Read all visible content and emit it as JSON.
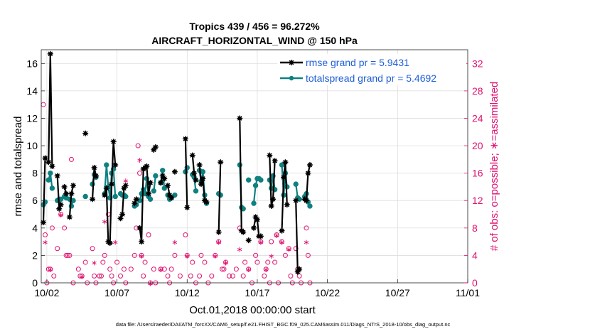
{
  "chart_data": {
    "type": "line",
    "title_line1": "Tropics 439 / 456 = 96.272%",
    "title_line2": "AIRCRAFT_HORIZONTAL_WIND @ 150 hPa",
    "xlabel": "Oct.01,2018 00:00:00 start",
    "ylabel_left": "rmse and totalspread",
    "ylabel_right": "# of obs: o=possible; ∗=assimilated",
    "footer": "data file: /Users/raeder/DAI/ATM_forcXX/CAM6_setup/f.e21.FHIST_BGC.f09_025.CAM6assim.011/Diags_NTrS_2018-10/obs_diag_output.nc",
    "xlim": [
      1.6,
      32.0
    ],
    "ylim_left": [
      0,
      17
    ],
    "ylim_right": [
      0,
      34
    ],
    "x_ticks": [
      {
        "value": 2,
        "label": "10/02"
      },
      {
        "value": 7,
        "label": "10/07"
      },
      {
        "value": 12,
        "label": "10/12"
      },
      {
        "value": 17,
        "label": "10/17"
      },
      {
        "value": 22,
        "label": "10/22"
      },
      {
        "value": 27,
        "label": "10/27"
      },
      {
        "value": 32,
        "label": "11/01"
      }
    ],
    "y_ticks_left": [
      0,
      2,
      4,
      6,
      8,
      10,
      12,
      14,
      16
    ],
    "y_ticks_right": [
      0,
      4,
      8,
      12,
      16,
      20,
      24,
      28,
      32
    ],
    "colors": {
      "rmse": "#000000",
      "spread": "#108080",
      "obs": "#e0116f",
      "legend_text": "#1f5fd6"
    },
    "series": [
      {
        "name": "rmse grand pr = 5.9431",
        "segments": [
          [
            [
              1.75,
              4.4
            ],
            [
              1.88,
              9.1
            ]
          ],
          [
            [
              2.12,
              8.8
            ],
            [
              2.25,
              16.7
            ],
            [
              2.38,
              8.5
            ]
          ],
          [
            [
              2.75,
              7.8
            ],
            [
              2.88,
              5.4
            ],
            [
              3.0,
              5.7
            ]
          ],
          [
            [
              3.25,
              7.0
            ],
            [
              3.38,
              6.5
            ]
          ],
          [
            [
              3.62,
              4.8
            ],
            [
              3.75,
              6.5
            ],
            [
              3.88,
              7.1
            ]
          ],
          [
            [
              4.75,
              10.9
            ]
          ],
          [
            [
              5.25,
              6.1
            ],
            [
              5.38,
              8.4
            ],
            [
              5.5,
              7.8
            ]
          ],
          [
            [
              6.12,
              6.4
            ],
            [
              6.25,
              6.9
            ],
            [
              6.38,
              3.0
            ],
            [
              6.5,
              2.9
            ],
            [
              6.62,
              7.2
            ],
            [
              6.75,
              10.3
            ],
            [
              6.88,
              8.6
            ]
          ],
          [
            [
              7.25,
              4.7
            ],
            [
              7.38,
              5.0
            ],
            [
              7.5,
              6.9
            ],
            [
              7.62,
              7.1
            ]
          ],
          [
            [
              8.25,
              5.8
            ],
            [
              8.38,
              6.1
            ]
          ],
          [
            [
              8.62,
              4.0
            ],
            [
              8.75,
              3.0
            ],
            [
              8.88,
              8.3
            ],
            [
              9.0,
              8.4
            ],
            [
              9.12,
              8.5
            ],
            [
              9.25,
              6.5
            ],
            [
              9.38,
              7.3
            ]
          ],
          [
            [
              9.62,
              9.7
            ],
            [
              9.75,
              9.9
            ]
          ],
          [
            [
              10.12,
              7.3
            ],
            [
              10.25,
              7.8
            ],
            [
              10.38,
              7.6
            ]
          ],
          [
            [
              10.62,
              7.1
            ],
            [
              10.75,
              6.4
            ],
            [
              10.88,
              6.2
            ]
          ],
          [
            [
              11.12,
              8.1
            ]
          ],
          [
            [
              11.88,
              10.5
            ],
            [
              12.0,
              5.5
            ]
          ],
          [
            [
              12.38,
              9.3
            ],
            [
              12.5,
              8.0
            ],
            [
              12.62,
              7.5
            ]
          ],
          [
            [
              12.88,
              8.6
            ],
            [
              13.0,
              7.2
            ],
            [
              13.12,
              7.6
            ],
            [
              13.25,
              6.0
            ],
            [
              13.38,
              5.9
            ]
          ],
          [
            [
              14.25,
              3.7
            ],
            [
              14.38,
              8.8
            ]
          ],
          [
            [
              15.75,
              12.0
            ],
            [
              15.88,
              3.8
            ],
            [
              16.0,
              3.7
            ]
          ],
          [
            [
              16.38,
              3.1
            ]
          ],
          [
            [
              16.75,
              4.0
            ],
            [
              16.88,
              4.8
            ],
            [
              17.0,
              4.6
            ],
            [
              17.12,
              3.4
            ],
            [
              17.25,
              3.4
            ]
          ],
          [
            [
              17.88,
              9.3
            ],
            [
              18.0,
              5.6
            ],
            [
              18.12,
              6.1
            ],
            [
              18.25,
              8.9
            ]
          ],
          [
            [
              18.75,
              3.8
            ],
            [
              18.88,
              7.7
            ],
            [
              19.0,
              8.8
            ],
            [
              19.12,
              5.7
            ]
          ],
          [
            [
              19.75,
              6.0
            ],
            [
              19.88,
              0.8
            ],
            [
              20.0,
              1.0
            ]
          ],
          [
            [
              20.38,
              6.1
            ],
            [
              20.5,
              6.0
            ],
            [
              20.62,
              8.0
            ],
            [
              20.75,
              8.6
            ]
          ]
        ]
      },
      {
        "name": "totalspread grand pr = 5.4692",
        "segments": [
          [
            [
              1.75,
              5.7
            ],
            [
              1.88,
              5.9
            ]
          ],
          [
            [
              2.12,
              7.5
            ],
            [
              2.25,
              8.0
            ],
            [
              2.38,
              6.9
            ]
          ],
          [
            [
              2.75,
              6.0
            ],
            [
              2.88,
              6.1
            ],
            [
              3.0,
              6.1
            ]
          ],
          [
            [
              3.25,
              6.3
            ],
            [
              3.38,
              6.2
            ]
          ],
          [
            [
              3.62,
              6.1
            ],
            [
              3.75,
              5.6
            ],
            [
              3.88,
              6.0
            ]
          ],
          [
            [
              4.75,
              6.3
            ]
          ],
          [
            [
              5.25,
              7.2
            ],
            [
              5.38,
              7.9
            ],
            [
              5.5,
              7.7
            ]
          ],
          [
            [
              6.12,
              6.5
            ],
            [
              6.25,
              8.6
            ],
            [
              6.38,
              7.0
            ],
            [
              6.5,
              6.2
            ],
            [
              6.62,
              8.0
            ],
            [
              6.75,
              8.3
            ],
            [
              6.88,
              6.3
            ]
          ],
          [
            [
              7.25,
              6.5
            ],
            [
              7.38,
              6.4
            ],
            [
              7.5,
              6.4
            ],
            [
              7.62,
              6.3
            ]
          ],
          [
            [
              8.25,
              5.6
            ],
            [
              8.38,
              5.7
            ]
          ],
          [
            [
              8.62,
              6.0
            ],
            [
              8.75,
              6.5
            ],
            [
              8.88,
              6.8
            ],
            [
              9.0,
              6.5
            ],
            [
              9.12,
              7.6
            ],
            [
              9.25,
              6.3
            ],
            [
              9.38,
              6.1
            ]
          ],
          [
            [
              9.62,
              6.7
            ],
            [
              9.75,
              7.8
            ]
          ],
          [
            [
              10.12,
              7.3
            ],
            [
              10.25,
              8.2
            ],
            [
              10.38,
              6.9
            ]
          ],
          [
            [
              10.62,
              6.4
            ],
            [
              10.75,
              6.1
            ],
            [
              10.88,
              6.2
            ]
          ],
          [
            [
              11.12,
              6.4
            ]
          ],
          [
            [
              11.88,
              8.1
            ],
            [
              12.0,
              8.4
            ]
          ],
          [
            [
              12.38,
              7.9
            ],
            [
              12.5,
              7.7
            ],
            [
              12.62,
              6.7
            ]
          ],
          [
            [
              12.88,
              8.2
            ],
            [
              13.0,
              7.4
            ],
            [
              13.12,
              8.1
            ],
            [
              13.25,
              6.4
            ],
            [
              13.38,
              5.8
            ]
          ],
          [
            [
              14.25,
              6.5
            ],
            [
              14.38,
              6.4
            ]
          ],
          [
            [
              15.75,
              8.6
            ],
            [
              15.88,
              5.5
            ],
            [
              16.0,
              5.4
            ]
          ],
          [
            [
              16.38,
              7.5
            ]
          ],
          [
            [
              16.75,
              5.8
            ],
            [
              16.88,
              7.1
            ],
            [
              17.0,
              7.6
            ],
            [
              17.12,
              7.6
            ],
            [
              17.25,
              7.5
            ]
          ],
          [
            [
              17.88,
              7.5
            ],
            [
              18.0,
              6.9
            ],
            [
              18.12,
              7.8
            ],
            [
              18.25,
              6.8
            ]
          ],
          [
            [
              18.75,
              8.6
            ],
            [
              18.88,
              6.4
            ],
            [
              19.0,
              8.0
            ],
            [
              19.12,
              7.0
            ]
          ],
          [
            [
              19.75,
              7.2
            ],
            [
              19.88,
              6.2
            ],
            [
              20.0,
              6.1
            ]
          ],
          [
            [
              20.38,
              6.3
            ],
            [
              20.5,
              6.5
            ],
            [
              20.62,
              5.9
            ],
            [
              20.75,
              5.6
            ]
          ]
        ]
      }
    ],
    "obs_possible": [
      [
        1.75,
        26
      ],
      [
        1.88,
        7
      ],
      [
        2.0,
        0
      ],
      [
        2.12,
        2
      ],
      [
        2.25,
        2
      ],
      [
        2.38,
        8
      ],
      [
        2.5,
        1
      ],
      [
        2.75,
        5
      ],
      [
        2.88,
        12
      ],
      [
        3.0,
        10
      ],
      [
        3.25,
        8
      ],
      [
        3.38,
        4
      ],
      [
        3.5,
        4
      ],
      [
        3.62,
        4
      ],
      [
        3.75,
        18
      ],
      [
        3.88,
        0
      ],
      [
        4.25,
        2
      ],
      [
        4.38,
        1
      ],
      [
        4.5,
        1
      ],
      [
        4.75,
        3
      ],
      [
        4.88,
        0
      ],
      [
        5.25,
        5
      ],
      [
        5.38,
        1
      ],
      [
        5.5,
        0
      ],
      [
        5.75,
        1
      ],
      [
        5.88,
        1
      ],
      [
        6.0,
        3
      ],
      [
        6.12,
        4
      ],
      [
        6.38,
        10
      ],
      [
        6.5,
        2
      ],
      [
        6.62,
        1
      ],
      [
        6.75,
        0
      ],
      [
        7.0,
        3
      ],
      [
        7.25,
        1
      ],
      [
        7.5,
        2
      ],
      [
        7.62,
        0
      ],
      [
        8.0,
        2
      ],
      [
        8.25,
        4
      ],
      [
        8.38,
        8
      ],
      [
        8.5,
        20
      ],
      [
        8.62,
        16
      ],
      [
        8.75,
        4
      ],
      [
        8.88,
        1
      ],
      [
        9.0,
        3
      ],
      [
        9.25,
        7
      ],
      [
        9.38,
        0
      ],
      [
        9.62,
        2
      ],
      [
        9.75,
        0
      ],
      [
        10.12,
        2
      ],
      [
        10.38,
        2
      ],
      [
        10.62,
        1
      ],
      [
        10.75,
        0
      ],
      [
        10.88,
        2
      ],
      [
        11.12,
        4
      ],
      [
        11.5,
        1
      ],
      [
        11.88,
        7
      ],
      [
        12.0,
        4
      ],
      [
        12.25,
        1
      ],
      [
        12.38,
        3
      ],
      [
        12.62,
        0
      ],
      [
        12.88,
        1
      ],
      [
        13.0,
        4
      ],
      [
        13.25,
        3
      ],
      [
        13.5,
        0
      ],
      [
        13.75,
        1
      ],
      [
        14.0,
        4
      ],
      [
        14.25,
        6
      ],
      [
        14.5,
        2
      ],
      [
        14.62,
        2
      ],
      [
        14.75,
        3
      ],
      [
        15.0,
        1
      ],
      [
        15.25,
        1
      ],
      [
        15.5,
        2
      ],
      [
        15.75,
        8
      ],
      [
        16.0,
        1
      ],
      [
        16.12,
        3
      ],
      [
        16.38,
        2
      ],
      [
        16.62,
        0
      ],
      [
        16.88,
        4
      ],
      [
        17.0,
        3
      ],
      [
        17.25,
        6
      ],
      [
        17.5,
        1
      ],
      [
        17.62,
        2
      ],
      [
        17.75,
        3
      ],
      [
        17.88,
        0
      ],
      [
        18.0,
        6
      ],
      [
        18.25,
        3
      ],
      [
        18.38,
        7
      ],
      [
        18.5,
        0
      ],
      [
        18.75,
        6
      ],
      [
        19.0,
        4
      ],
      [
        19.25,
        5
      ],
      [
        19.38,
        1
      ],
      [
        19.5,
        0
      ],
      [
        19.75,
        5
      ],
      [
        19.88,
        2
      ],
      [
        20.0,
        1
      ],
      [
        20.12,
        0
      ],
      [
        20.5,
        8
      ],
      [
        20.62,
        4
      ],
      [
        20.75,
        0
      ]
    ],
    "obs_assimilated": [
      [
        1.88,
        6
      ],
      [
        2.25,
        2
      ],
      [
        3.0,
        10
      ],
      [
        4.5,
        1
      ],
      [
        5.38,
        3
      ],
      [
        6.12,
        9
      ],
      [
        6.88,
        6
      ],
      [
        7.62,
        15
      ],
      [
        8.62,
        18
      ],
      [
        8.75,
        4
      ],
      [
        9.38,
        0
      ],
      [
        10.12,
        2
      ],
      [
        11.12,
        6
      ],
      [
        12.0,
        4
      ],
      [
        14.0,
        4
      ],
      [
        14.25,
        6
      ],
      [
        14.75,
        3
      ],
      [
        15.75,
        5
      ],
      [
        16.38,
        2
      ],
      [
        17.25,
        6
      ],
      [
        17.62,
        2
      ],
      [
        18.0,
        4
      ],
      [
        18.38,
        7
      ],
      [
        18.75,
        6
      ],
      [
        19.25,
        5
      ],
      [
        19.88,
        2
      ],
      [
        20.5,
        6
      ]
    ],
    "legend": [
      {
        "label": "rmse grand pr = 5.9431",
        "key": "rmse"
      },
      {
        "label": "totalspread grand pr = 5.4692",
        "key": "spread"
      }
    ]
  }
}
